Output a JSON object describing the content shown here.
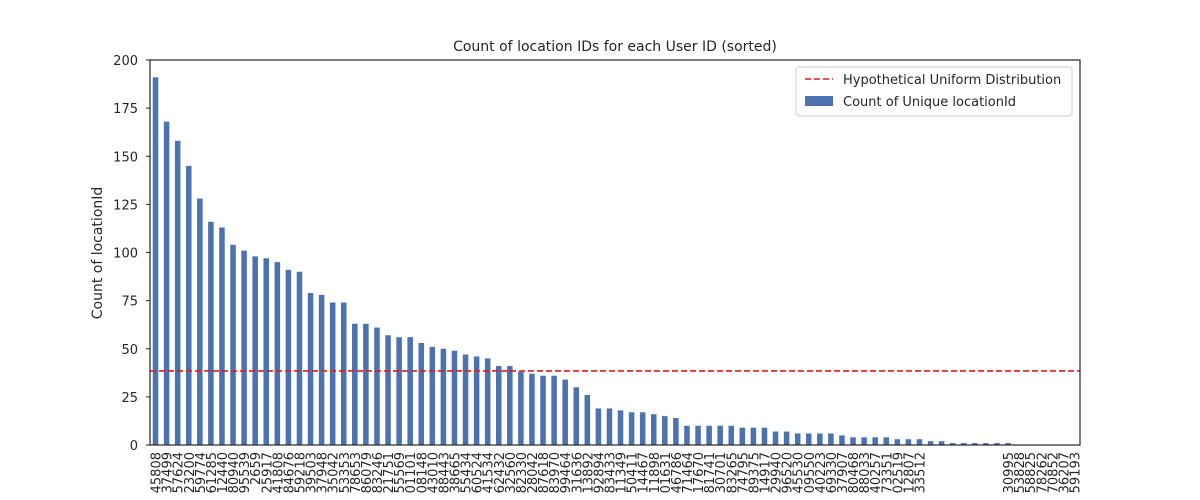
{
  "chart_data": {
    "type": "bar",
    "title": "Count of location IDs for each User ID (sorted)",
    "y_label": "Count of locationId",
    "categories": [
      "45808",
      "37499",
      "57624",
      "23200",
      "59774",
      "61285",
      "12440",
      "80940",
      "95539",
      "2659",
      "25917",
      "41808",
      "84676",
      "59218",
      "39503",
      "37948",
      "35042",
      "53353",
      "78653",
      "86079",
      "83246",
      "21751",
      "55569",
      "01101",
      "08148",
      "43010",
      "88443",
      "38665",
      "55434",
      "60524",
      "41534",
      "62432",
      "32560",
      "82330",
      "28042",
      "87618",
      "83970",
      "99464",
      "31636",
      "13892",
      "92894",
      "83433",
      "11349",
      "50411",
      "14467",
      "11898",
      "01631",
      "46786",
      "71464",
      "17670",
      "81741",
      "30701",
      "83265",
      "74795",
      "89375",
      "14917",
      "29940",
      "96520",
      "45530",
      "09550",
      "40223",
      "69330",
      "37907",
      "80468",
      "88033",
      "40257",
      "73351",
      "02519",
      "12807",
      "33512",
      null,
      null,
      null,
      null,
      null,
      null,
      null,
      "30995",
      "53828",
      "58825",
      "78262",
      "70852",
      "36207",
      "59193"
    ],
    "series": [
      {
        "name": "Count of Unique locationId",
        "color": "#4c72b0",
        "values": [
          191,
          168,
          158,
          145,
          128,
          116,
          113,
          104,
          101,
          98,
          97,
          95,
          91,
          90,
          79,
          78,
          74,
          74,
          63,
          63,
          61,
          57,
          56,
          56,
          53,
          51,
          50,
          49,
          47,
          46,
          45,
          41,
          41,
          38,
          37,
          36,
          36,
          34,
          30,
          26,
          19,
          19,
          18,
          17,
          17,
          16,
          15,
          14,
          10,
          10,
          10,
          10,
          10,
          9,
          9,
          9,
          7,
          7,
          6,
          6,
          6,
          6,
          5,
          4,
          4,
          4,
          4,
          3,
          3,
          3,
          2,
          2,
          1,
          1,
          1,
          1,
          1,
          1,
          0,
          0,
          0,
          0,
          0,
          0
        ]
      }
    ],
    "reference_line": {
      "name": "Hypothetical Uniform Distribution",
      "color": "#e41a1c",
      "value": 38.5
    },
    "ylim": [
      0,
      200
    ],
    "yticks": [
      0,
      25,
      50,
      75,
      100,
      125,
      150,
      175,
      200
    ],
    "legend": "upper right"
  }
}
